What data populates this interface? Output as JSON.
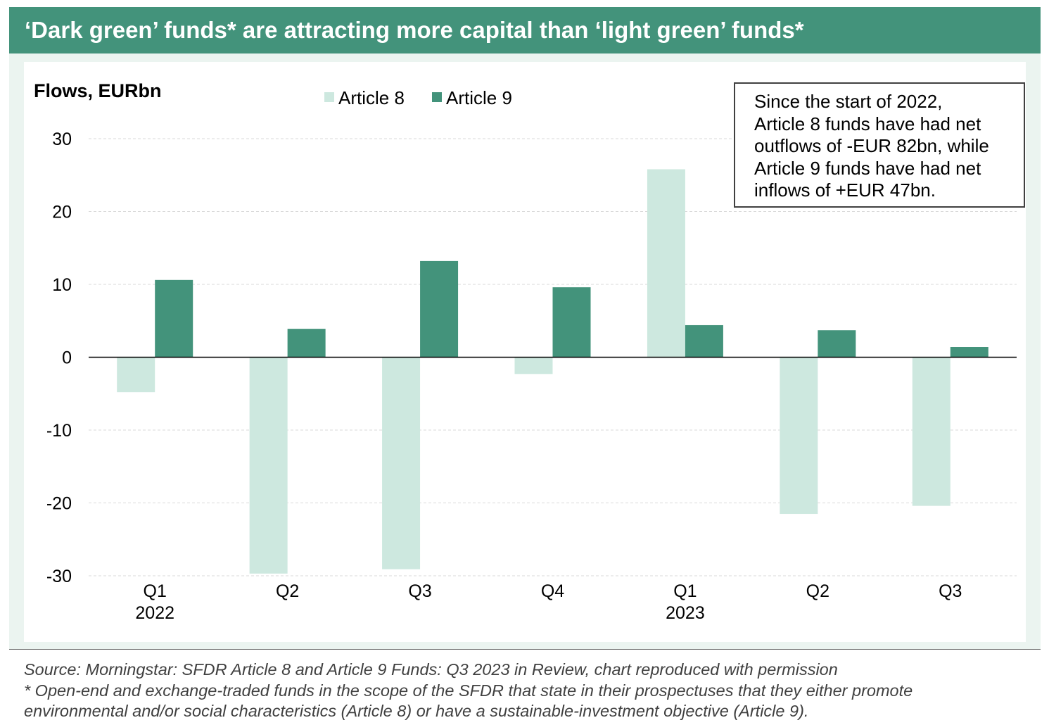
{
  "header": {
    "title": "‘Dark green’ funds* are attracting more capital than ‘light green’ funds*"
  },
  "chart_data": {
    "type": "bar",
    "y_axis_title": "Flows, EURbn",
    "categories": [
      {
        "quarter": "Q1",
        "year": "2022"
      },
      {
        "quarter": "Q2",
        "year": ""
      },
      {
        "quarter": "Q3",
        "year": ""
      },
      {
        "quarter": "Q4",
        "year": ""
      },
      {
        "quarter": "Q1",
        "year": "2023"
      },
      {
        "quarter": "Q2",
        "year": ""
      },
      {
        "quarter": "Q3",
        "year": ""
      }
    ],
    "series": [
      {
        "name": "Article 8",
        "color": "#cde8df",
        "values": [
          -4.8,
          -29.7,
          -29.1,
          -2.3,
          25.8,
          -21.5,
          -20.4
        ]
      },
      {
        "name": "Article 9",
        "color": "#43937b",
        "values": [
          10.6,
          3.9,
          13.2,
          9.6,
          4.4,
          3.7,
          1.4
        ]
      }
    ],
    "ylim": [
      -30,
      30
    ],
    "yticks": [
      30,
      20,
      10,
      0,
      -10,
      -20,
      -30
    ],
    "grid": true,
    "legend_position": "top-center"
  },
  "callout": {
    "lines": [
      "Since the start of 2022,",
      "Article 8 funds have had net",
      "outflows of -EUR 82bn, while",
      "Article 9 funds have had net",
      "inflows of +EUR 47bn."
    ]
  },
  "footnotes": {
    "source": "Source: Morningstar: SFDR Article 8 and Article 9 Funds: Q3 2023 in Review, chart reproduced with permission",
    "note_line1": "* Open-end and exchange-traded funds in the scope of the SFDR that state in their prospectuses that they either promote",
    "note_line2": "environmental and/or social characteristics (Article 8) or have a sustainable-investment objective (Article 9)."
  }
}
